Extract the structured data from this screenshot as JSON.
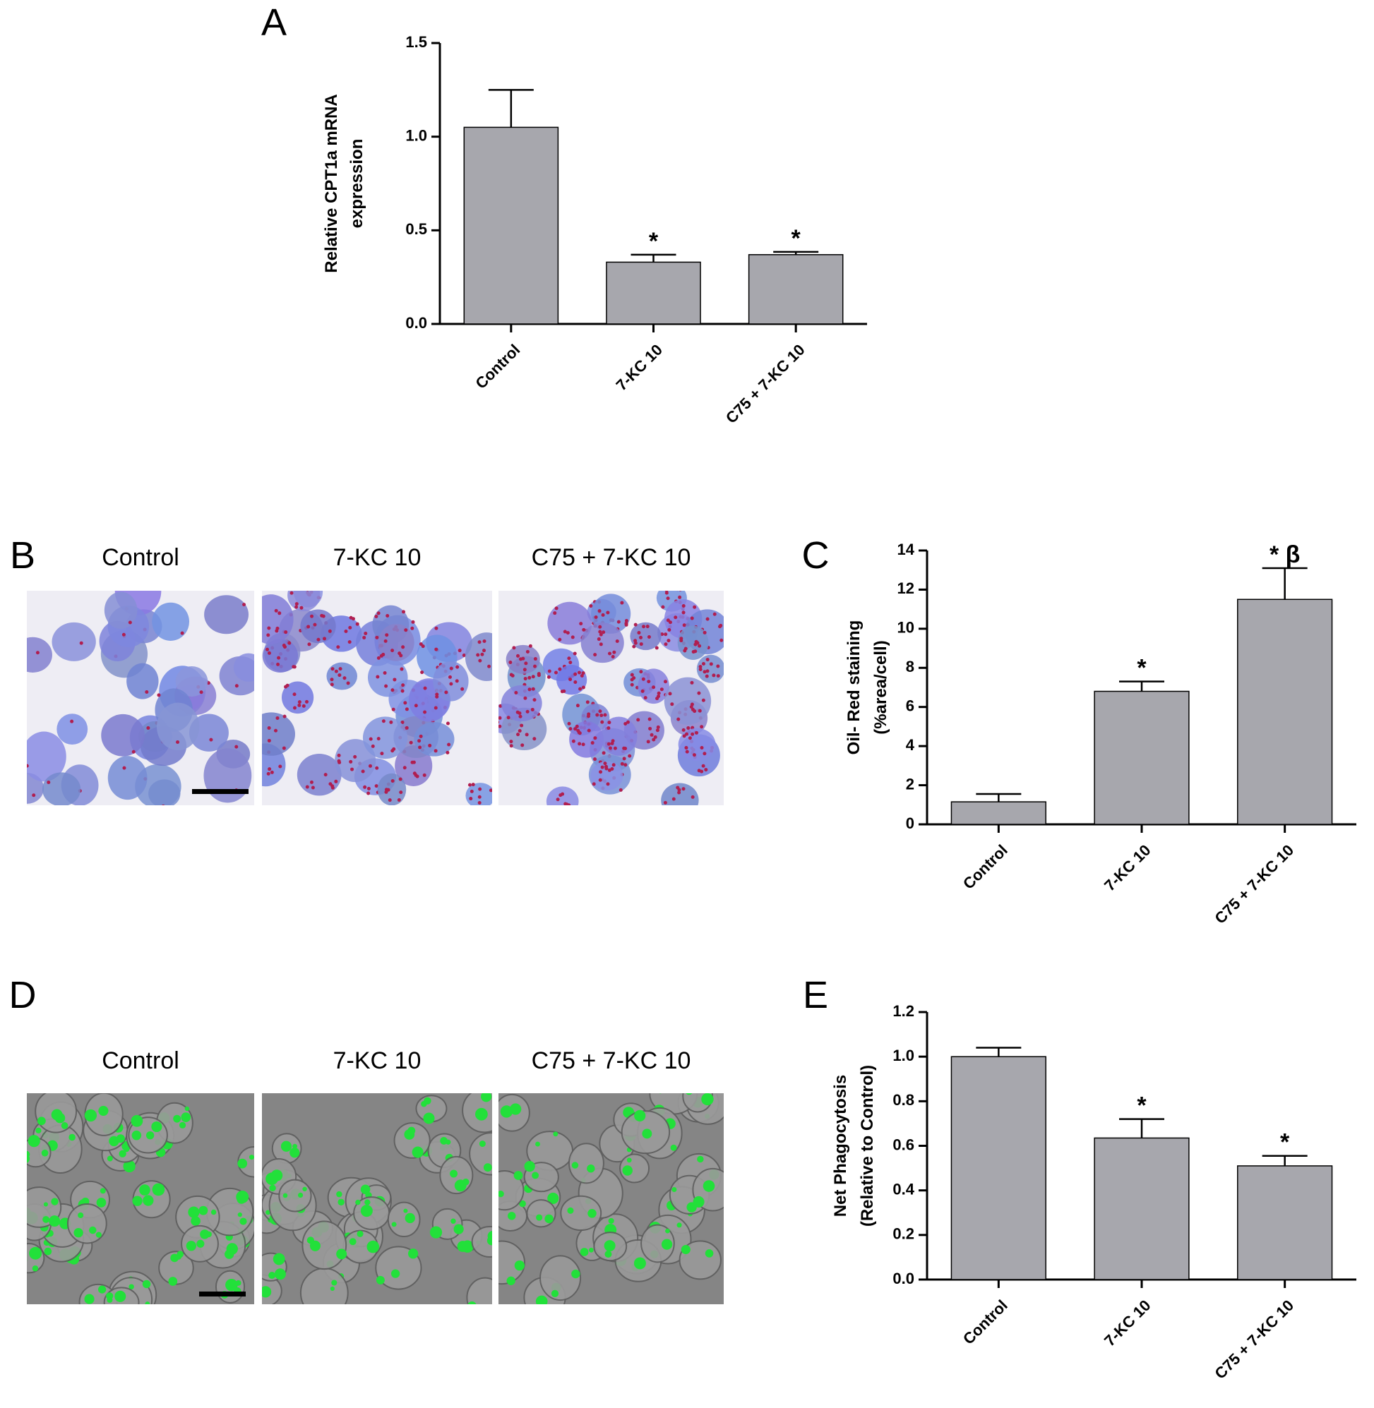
{
  "chart_data": [
    {
      "type": "bar",
      "panel": "A",
      "y_label": [
        "Relative CPT1a mRNA",
        "expression"
      ],
      "categories": [
        "Control",
        "7-KC 10",
        "C75 + 7-KC 10"
      ],
      "values": [
        1.05,
        0.33,
        0.37
      ],
      "errors": [
        0.2,
        0.04,
        0.015
      ],
      "annotations": [
        null,
        "*",
        "*"
      ],
      "color": "#a7a7ad",
      "ylim": [
        0,
        1.5
      ],
      "yticks": [
        {
          "value": 0,
          "label": "0.0"
        },
        0.5,
        {
          "value": 1,
          "label": "1.0"
        },
        1.5
      ]
    },
    {
      "type": "bar",
      "panel": "C",
      "y_label": [
        "Oil- Red staining",
        "(%area/cell)"
      ],
      "categories": [
        "Control",
        "7-KC 10",
        "C75 + 7-KC 10"
      ],
      "values": [
        1.15,
        6.8,
        11.5
      ],
      "errors": [
        0.4,
        0.5,
        1.6
      ],
      "annotations": [
        null,
        "*",
        "* β"
      ],
      "color": "#a7a7ad",
      "ylim": [
        0,
        14
      ],
      "yticks": [
        0,
        2,
        4,
        6,
        8,
        10,
        12,
        14
      ]
    },
    {
      "type": "bar",
      "panel": "E",
      "y_label": [
        "Net Phagocytosis",
        "(Relative to Control)"
      ],
      "categories": [
        "Control",
        "7-KC 10",
        "C75 + 7-KC 10"
      ],
      "values": [
        1.0,
        0.635,
        0.51
      ],
      "errors": [
        0.04,
        0.085,
        0.045
      ],
      "annotations": [
        null,
        "*",
        "*"
      ],
      "color": "#a7a7ad",
      "ylim": [
        0,
        1.2
      ],
      "yticks": [
        {
          "value": 0,
          "label": "0.0"
        },
        0.2,
        0.4,
        0.6,
        0.8,
        {
          "value": 1,
          "label": "1.0"
        },
        1.2
      ]
    }
  ],
  "image_panels": [
    {
      "letter": "B",
      "labels": [
        "Control",
        "7-KC 10",
        "C75 + 7-KC 10"
      ]
    },
    {
      "letter": "D",
      "labels": [
        "Control",
        "7-KC 10",
        "C75 + 7-KC 10"
      ]
    }
  ]
}
